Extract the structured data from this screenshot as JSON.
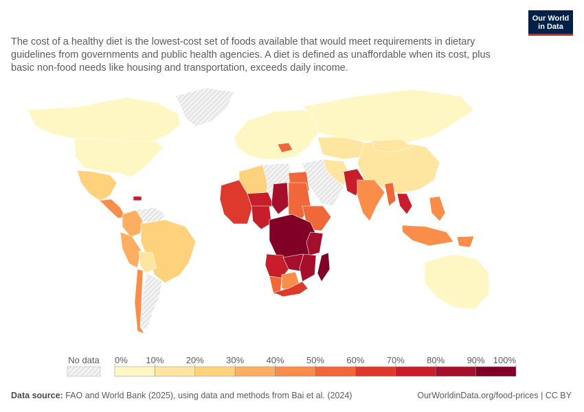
{
  "logo": {
    "line1": "Our World",
    "line2": "in Data"
  },
  "subtitle": "The cost of a healthy diet is the lowest-cost set of foods available that would meet requirements in dietary guidelines from governments and public health agencies. A diet is defined as unaffordable when its cost, plus basic non-food needs like housing and transportation, exceeds daily income.",
  "legend": {
    "no_data_label": "No data",
    "ticks": [
      "0%",
      "10%",
      "20%",
      "30%",
      "40%",
      "50%",
      "60%",
      "70%",
      "80%",
      "90%",
      "100%"
    ],
    "colors": [
      "#fff7c3",
      "#fee6a0",
      "#fed27c",
      "#fdae61",
      "#f98d49",
      "#f0673a",
      "#dd3a2d",
      "#c81d2a",
      "#a50f2c",
      "#800026"
    ],
    "no_data_color": "#e8e8e8"
  },
  "footer": {
    "source_label": "Data source:",
    "source_text": "FAO and World Bank (2025), using data and methods from Bai et al. (2024)",
    "url": "OurWorldinData.org/food-prices | CC BY"
  },
  "map_regions": [
    {
      "name": "Canada",
      "bin": 0
    },
    {
      "name": "United States",
      "bin": 0
    },
    {
      "name": "Greenland",
      "bin": -1
    },
    {
      "name": "Mexico",
      "bin": 2
    },
    {
      "name": "Central America",
      "bin": 4
    },
    {
      "name": "Haiti",
      "bin": 7
    },
    {
      "name": "Colombia",
      "bin": 3
    },
    {
      "name": "Venezuela",
      "bin": -1
    },
    {
      "name": "Peru",
      "bin": 3
    },
    {
      "name": "Brazil",
      "bin": 2
    },
    {
      "name": "Bolivia",
      "bin": 1
    },
    {
      "name": "Argentina",
      "bin": -1
    },
    {
      "name": "Chile",
      "bin": 4
    },
    {
      "name": "Europe",
      "bin": 0
    },
    {
      "name": "Romania",
      "bin": 5
    },
    {
      "name": "Russia",
      "bin": 0
    },
    {
      "name": "Kazakhstan",
      "bin": 1
    },
    {
      "name": "China",
      "bin": 1
    },
    {
      "name": "Mongolia",
      "bin": 1
    },
    {
      "name": "Middle East",
      "bin": -1
    },
    {
      "name": "Iran",
      "bin": 1
    },
    {
      "name": "Pakistan",
      "bin": 7
    },
    {
      "name": "India",
      "bin": 4
    },
    {
      "name": "Myanmar",
      "bin": 5
    },
    {
      "name": "Laos",
      "bin": 7
    },
    {
      "name": "Indonesia",
      "bin": 4
    },
    {
      "name": "Philippines",
      "bin": 4
    },
    {
      "name": "Papua New Guinea",
      "bin": 4
    },
    {
      "name": "Australia",
      "bin": 0
    },
    {
      "name": "Algeria",
      "bin": 2
    },
    {
      "name": "Libya",
      "bin": -1
    },
    {
      "name": "Egypt",
      "bin": 5
    },
    {
      "name": "West Africa",
      "bin": 6
    },
    {
      "name": "Niger",
      "bin": 7
    },
    {
      "name": "Nigeria",
      "bin": 7
    },
    {
      "name": "Chad",
      "bin": 8
    },
    {
      "name": "Sudan",
      "bin": 5
    },
    {
      "name": "Ethiopia",
      "bin": 5
    },
    {
      "name": "DR Congo",
      "bin": 9
    },
    {
      "name": "Tanzania",
      "bin": 8
    },
    {
      "name": "Angola",
      "bin": 7
    },
    {
      "name": "Zambia",
      "bin": 8
    },
    {
      "name": "Mozambique",
      "bin": 8
    },
    {
      "name": "Namibia",
      "bin": 5
    },
    {
      "name": "Botswana",
      "bin": 4
    },
    {
      "name": "South Africa",
      "bin": 6
    },
    {
      "name": "Madagascar",
      "bin": 9
    }
  ]
}
